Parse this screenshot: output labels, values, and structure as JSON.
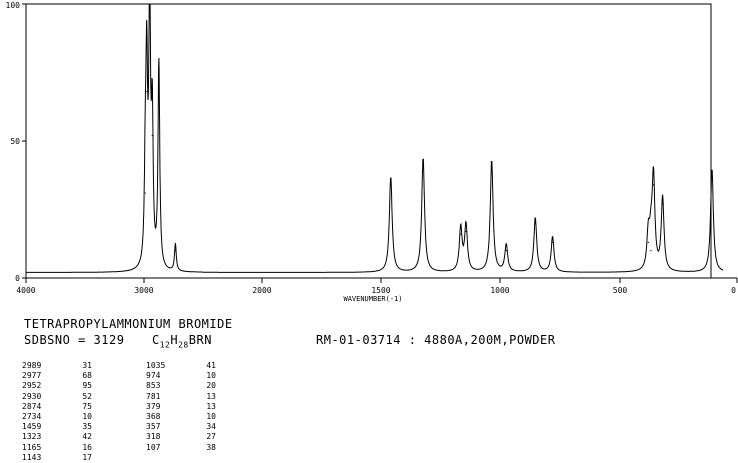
{
  "compound": "TETRAPROPYLAMMONIUM BROMIDE",
  "sdbsno_label": "SDBSNO = 3129",
  "formula": {
    "c": "C",
    "c_n": "12",
    "h": "H",
    "h_n": "28",
    "rest": "BRN"
  },
  "sample_info": "RM-01-03714 : 4880A,200M,POWDER",
  "chart_data": {
    "type": "line",
    "title": "",
    "xlabel": "WAVENUMBER(-1)",
    "ylabel": "",
    "xlim": [
      4000,
      0
    ],
    "ylim": [
      0,
      100
    ],
    "x_ticks": [
      "4000",
      "3000",
      "2000",
      "1500",
      "1000",
      "500",
      "0"
    ],
    "y_ticks": [
      "100",
      "50",
      "0"
    ],
    "grid": false,
    "legend": "none",
    "line_color": "#000000",
    "baseline_intensity": 2,
    "peaks": [
      {
        "x": 2989,
        "y": 31
      },
      {
        "x": 2977,
        "y": 68
      },
      {
        "x": 2952,
        "y": 95
      },
      {
        "x": 2930,
        "y": 52
      },
      {
        "x": 2874,
        "y": 75
      },
      {
        "x": 2734,
        "y": 10
      },
      {
        "x": 1459,
        "y": 35
      },
      {
        "x": 1323,
        "y": 42
      },
      {
        "x": 1165,
        "y": 16
      },
      {
        "x": 1143,
        "y": 17
      },
      {
        "x": 1035,
        "y": 41
      },
      {
        "x": 974,
        "y": 10
      },
      {
        "x": 853,
        "y": 20
      },
      {
        "x": 781,
        "y": 13
      },
      {
        "x": 379,
        "y": 13
      },
      {
        "x": 368,
        "y": 10
      },
      {
        "x": 357,
        "y": 34
      },
      {
        "x": 318,
        "y": 27
      },
      {
        "x": 107,
        "y": 38
      }
    ]
  },
  "peak_table": [
    [
      {
        "w": "2989",
        "i": "31"
      },
      {
        "w": "2977",
        "i": "68"
      },
      {
        "w": "2952",
        "i": "95"
      },
      {
        "w": "2930",
        "i": "52"
      },
      {
        "w": "2874",
        "i": "75"
      },
      {
        "w": "2734",
        "i": "10"
      },
      {
        "w": "1459",
        "i": "35"
      },
      {
        "w": "1323",
        "i": "42"
      },
      {
        "w": "1165",
        "i": "16"
      },
      {
        "w": "1143",
        "i": "17"
      }
    ],
    [
      {
        "w": "1035",
        "i": "41"
      },
      {
        "w": "974",
        "i": "10"
      },
      {
        "w": "853",
        "i": "20"
      },
      {
        "w": "781",
        "i": "13"
      },
      {
        "w": "379",
        "i": "13"
      },
      {
        "w": "368",
        "i": "10"
      },
      {
        "w": "357",
        "i": "34"
      },
      {
        "w": "318",
        "i": "27"
      },
      {
        "w": "107",
        "i": "38"
      }
    ]
  ]
}
